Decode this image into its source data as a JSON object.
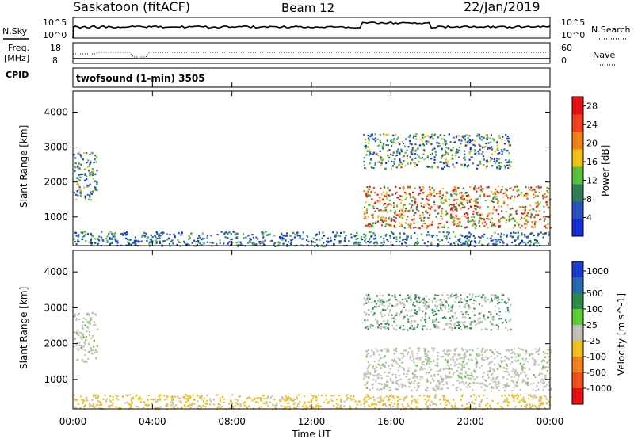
{
  "header": {
    "station": "Saskatoon (fitACF)",
    "beam": "Beam 12",
    "date": "22/Jan/2019"
  },
  "noise_panel": {
    "left_label": "N.Sky",
    "right_label": "N.Search",
    "left_ticks": [
      "10^5",
      "10^0"
    ],
    "right_ticks": [
      "10^5",
      "10^0"
    ]
  },
  "freq_panel": {
    "left_label_1": "Freq.",
    "left_label_2": "[MHz]",
    "right_label": "Nave",
    "left_ticks": [
      "18",
      "8"
    ],
    "right_ticks": [
      "60",
      "0"
    ]
  },
  "cpid_panel": {
    "label": "CPID",
    "program": "twofsound (1-min) 3505"
  },
  "x_axis": {
    "label": "Time UT",
    "ticks": [
      "00:00",
      "04:00",
      "08:00",
      "12:00",
      "16:00",
      "20:00",
      "00:00"
    ]
  },
  "chart_data": [
    {
      "type": "heatmap",
      "title": "",
      "xlabel": "Time UT",
      "ylabel": "Slant Range [km]",
      "xlim": [
        0,
        24
      ],
      "ylim": [
        180,
        4600
      ],
      "y_ticks": [
        1000,
        2000,
        3000,
        4000
      ],
      "colorbar": {
        "label": "Power [dB]",
        "ticks": [
          "4",
          "8",
          "12",
          "16",
          "20",
          "24",
          "28"
        ],
        "range": [
          0,
          30
        ],
        "colors": [
          "#1530d8",
          "#2a52c0",
          "#2f7f58",
          "#55c038",
          "#f0c018",
          "#f08018",
          "#f04020",
          "#e81010"
        ]
      },
      "regions": [
        {
          "t0": 0.0,
          "t1": 1.2,
          "r0": 1500,
          "r1": 2900,
          "note": "early echo band"
        },
        {
          "t0": 0.0,
          "t1": 24.0,
          "r0": 180,
          "r1": 600,
          "note": "near-range ground scatter"
        },
        {
          "t0": 14.6,
          "t1": 24.0,
          "r0": 700,
          "r1": 1900,
          "note": "strong afternoon band"
        },
        {
          "t0": 14.6,
          "t1": 22.0,
          "r0": 2400,
          "r1": 3400,
          "note": "upper scatter"
        }
      ]
    },
    {
      "type": "heatmap",
      "title": "",
      "xlabel": "Time UT",
      "ylabel": "Slant Range [km]",
      "xlim": [
        0,
        24
      ],
      "ylim": [
        180,
        4600
      ],
      "y_ticks": [
        1000,
        2000,
        3000,
        4000
      ],
      "colorbar": {
        "label": "Velocity [m s^-1]",
        "ticks": [
          "1000",
          "500",
          "100",
          "25",
          "-25",
          "-100",
          "-500",
          "-1000"
        ],
        "range": [
          -1000,
          1000
        ],
        "colors": [
          "#1a3cd0",
          "#2a6ab0",
          "#2f8a4c",
          "#5ccc34",
          "#c0c0b8",
          "#f0c020",
          "#f08020",
          "#f05018",
          "#e81010"
        ]
      },
      "regions": [
        {
          "t0": 0.0,
          "t1": 1.2,
          "r0": 1500,
          "r1": 2900,
          "note": "ground scatter (grey)"
        },
        {
          "t0": 0.0,
          "t1": 24.0,
          "r0": 180,
          "r1": 600,
          "note": "near-range orange/yellow"
        },
        {
          "t0": 14.6,
          "t1": 24.0,
          "r0": 700,
          "r1": 1900,
          "note": "ground scatter (grey)"
        },
        {
          "t0": 14.6,
          "t1": 22.0,
          "r0": 2400,
          "r1": 3400,
          "note": "mixed grey/green"
        }
      ]
    }
  ]
}
